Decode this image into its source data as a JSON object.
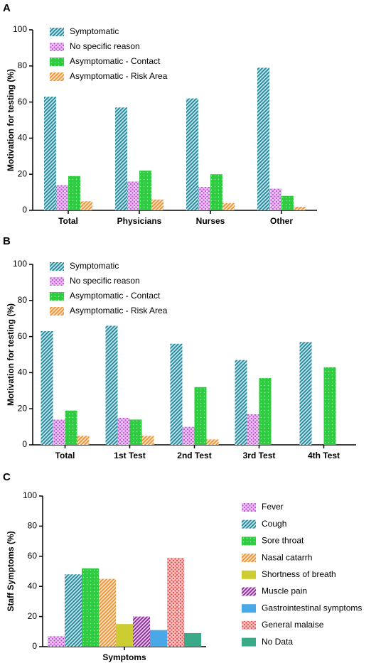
{
  "chart_data": [
    {
      "type": "bar",
      "label": "A",
      "ylabel": "Motivation for testing (%)",
      "categories": [
        "Total",
        "Physicians",
        "Nurses",
        "Other"
      ],
      "series": [
        {
          "name": "Symptomatic",
          "color": "#1f8a9e",
          "hatch": "stripes",
          "values": [
            63,
            57,
            62,
            79
          ]
        },
        {
          "name": "No specific reason",
          "color": "#c04fd6",
          "hatch": "dots",
          "values": [
            14,
            16,
            13,
            12
          ]
        },
        {
          "name": "Asymptomatic - Contact",
          "color": "#2ecc40",
          "hatch": "dense",
          "values": [
            19,
            22,
            20,
            8
          ]
        },
        {
          "name": "Asymptomatic - Risk Area",
          "color": "#f0922e",
          "hatch": "stripes",
          "values": [
            5,
            6,
            4,
            2
          ]
        }
      ],
      "ylim": [
        0,
        100
      ],
      "yticks": [
        0,
        20,
        40,
        60,
        80,
        100
      ],
      "legend": "upper left"
    },
    {
      "type": "bar",
      "label": "B",
      "ylabel": "Motivation for testing (%)",
      "categories": [
        "Total",
        "1st Test",
        "2nd Test",
        "3rd Test",
        "4th Test"
      ],
      "series": [
        {
          "name": "Symptomatic",
          "color": "#1f8a9e",
          "hatch": "stripes",
          "values": [
            63,
            66,
            56,
            47,
            57
          ]
        },
        {
          "name": "No specific reason",
          "color": "#c04fd6",
          "hatch": "dots",
          "values": [
            14,
            15,
            10,
            17,
            0
          ]
        },
        {
          "name": "Asymptomatic - Contact",
          "color": "#2ecc40",
          "hatch": "dense",
          "values": [
            19,
            14,
            32,
            37,
            43
          ]
        },
        {
          "name": "Asymptomatic - Risk Area",
          "color": "#f0922e",
          "hatch": "stripes",
          "values": [
            5,
            5,
            3,
            0,
            0
          ]
        }
      ],
      "ylim": [
        0,
        100
      ],
      "yticks": [
        0,
        20,
        40,
        60,
        80,
        100
      ],
      "legend": "upper left"
    },
    {
      "type": "bar",
      "label": "C",
      "ylabel": "Staff Symptoms (%)",
      "categories": [
        "Symptoms"
      ],
      "series": [
        {
          "name": "Fever",
          "color": "#c04fd6",
          "hatch": "dots",
          "values": [
            7
          ]
        },
        {
          "name": "Cough",
          "color": "#1f8a9e",
          "hatch": "stripes",
          "values": [
            48
          ]
        },
        {
          "name": "Sore throat",
          "color": "#2ecc40",
          "hatch": "dense",
          "values": [
            52
          ]
        },
        {
          "name": "Nasal catarrh",
          "color": "#f0922e",
          "hatch": "stripes",
          "values": [
            45
          ]
        },
        {
          "name": "Shortness of breath",
          "color": "#cccc33",
          "hatch": "solid",
          "values": [
            15
          ]
        },
        {
          "name": "Muscle pain",
          "color": "#8e2a9c",
          "hatch": "stripes",
          "values": [
            20
          ]
        },
        {
          "name": "Gastrointestinal symptoms",
          "color": "#4aa8e8",
          "hatch": "solid",
          "values": [
            11
          ]
        },
        {
          "name": "General malaise",
          "color": "#e84a4a",
          "hatch": "dots",
          "values": [
            59
          ]
        },
        {
          "name": "No Data",
          "color": "#3aaa88",
          "hatch": "solid",
          "values": [
            9
          ]
        }
      ],
      "ylim": [
        0,
        100
      ],
      "yticks": [
        0,
        20,
        40,
        60,
        80,
        100
      ],
      "legend": "right"
    }
  ]
}
